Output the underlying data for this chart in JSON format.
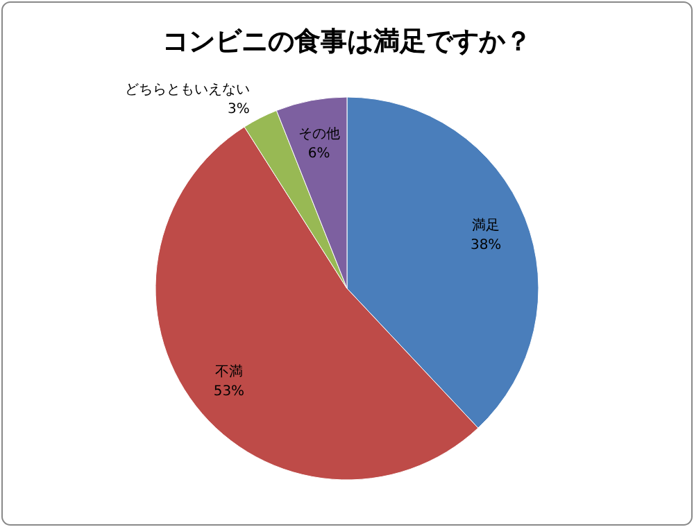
{
  "chart_data": {
    "type": "pie",
    "title": "コンビニの食事は満足ですか？",
    "categories": [
      "満足",
      "不満",
      "どちらともいえない",
      "その他"
    ],
    "values": [
      38,
      53,
      3,
      6
    ],
    "colors": [
      "#4a7ebb",
      "#be4b48",
      "#98b954",
      "#7d60a0"
    ],
    "value_labels": [
      "38%",
      "53%",
      "3%",
      "6%"
    ]
  }
}
